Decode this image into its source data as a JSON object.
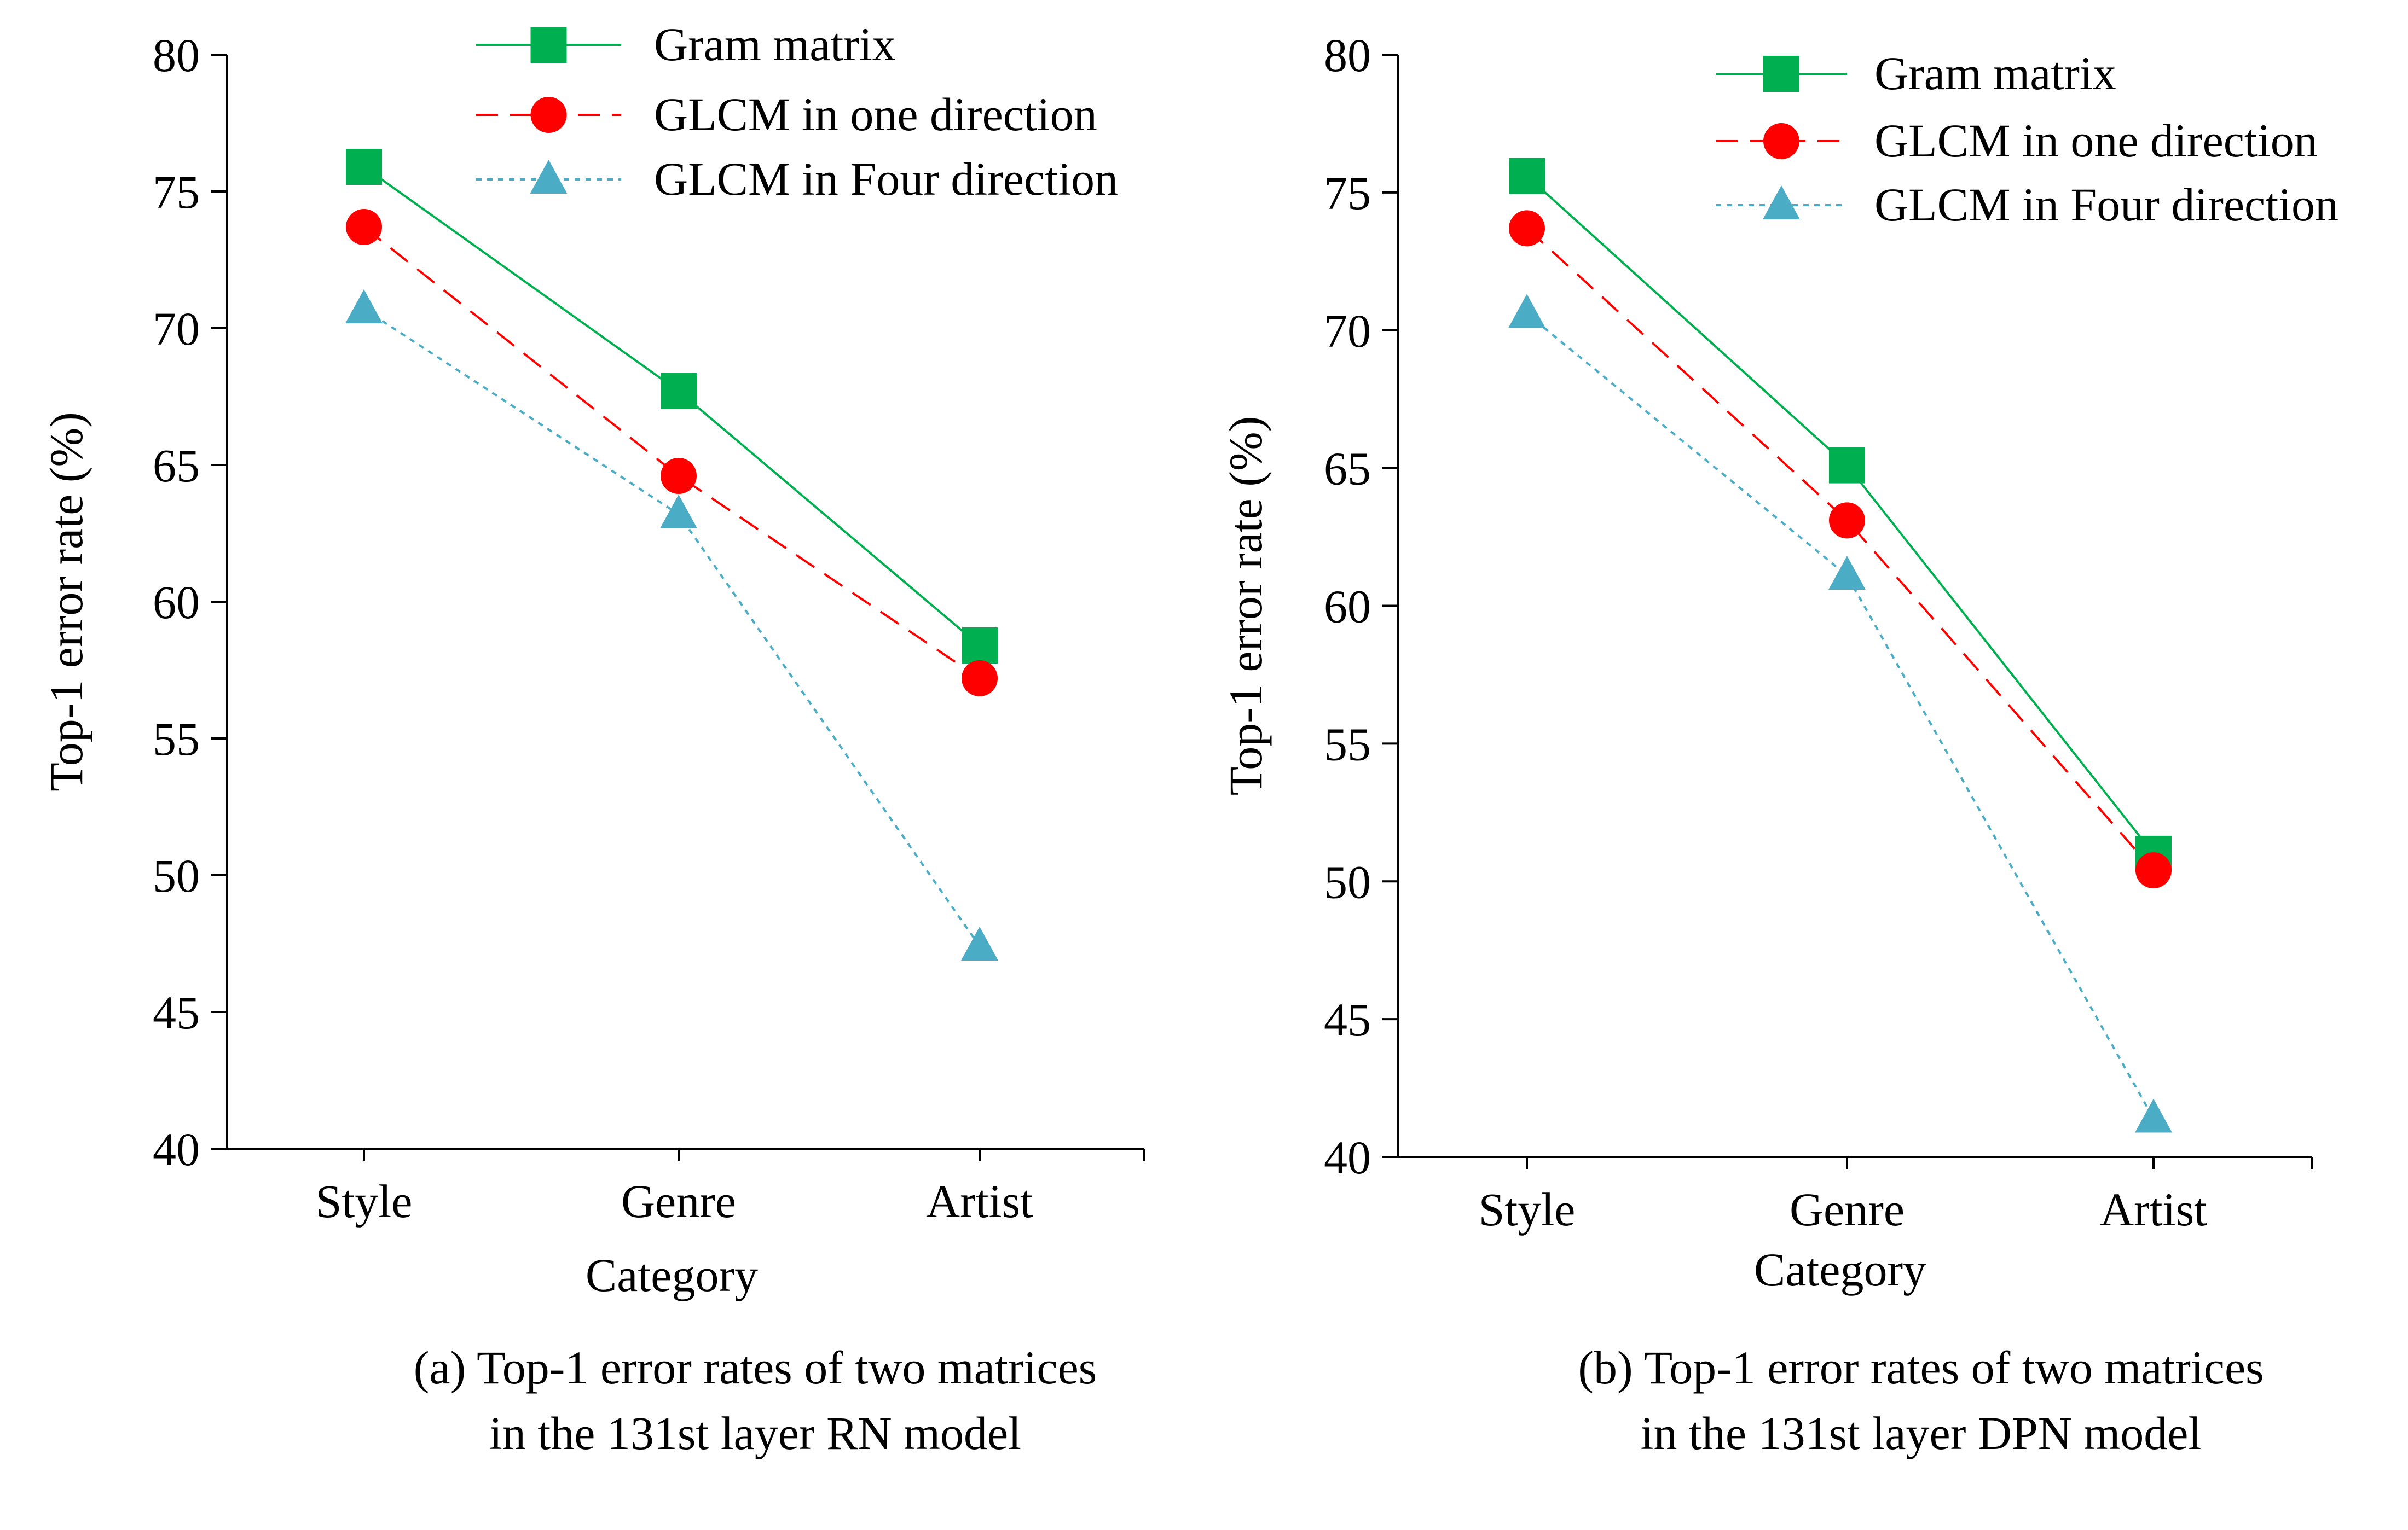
{
  "chart_data": [
    {
      "type": "line",
      "categories": [
        "Style",
        "Genre",
        "Artist"
      ],
      "ylabel": "Top-1 error rate (%)",
      "xlabel": "Category",
      "ylim": [
        40,
        80
      ],
      "yticks": [
        40,
        45,
        50,
        55,
        60,
        65,
        70,
        75,
        80
      ],
      "legend": "top-center",
      "grid": false,
      "series": [
        {
          "name": "Gram matrix",
          "values": [
            75.9,
            67.7,
            58.4
          ],
          "color": "#00b050",
          "marker": "square",
          "line": "solid"
        },
        {
          "name": "GLCM in one direction",
          "values": [
            73.7,
            64.6,
            57.2
          ],
          "color": "#ff0000",
          "marker": "circle",
          "line": "dashed"
        },
        {
          "name": "GLCM in Four direction",
          "values": [
            70.7,
            63.2,
            47.4
          ],
          "color": "#4bacc6",
          "marker": "triangle",
          "line": "dotted"
        }
      ],
      "caption": [
        "(a) Top-1 error rates of two matrices",
        "in the 131st layer RN model"
      ]
    },
    {
      "type": "line",
      "categories": [
        "Style",
        "Genre",
        "Artist"
      ],
      "ylabel": "Top-1 error rate (%)",
      "xlabel": "Category",
      "ylim": [
        40,
        80
      ],
      "yticks": [
        40,
        45,
        50,
        55,
        60,
        65,
        70,
        75,
        80
      ],
      "legend": "top-right",
      "grid": false,
      "series": [
        {
          "name": "Gram matrix",
          "values": [
            75.6,
            65.1,
            51.0
          ],
          "color": "#00b050",
          "marker": "square",
          "line": "solid"
        },
        {
          "name": "GLCM in one direction",
          "values": [
            73.7,
            63.1,
            50.4
          ],
          "color": "#ff0000",
          "marker": "circle",
          "line": "dashed"
        },
        {
          "name": "GLCM in Four direction",
          "values": [
            70.6,
            61.1,
            41.4
          ],
          "color": "#4bacc6",
          "marker": "triangle",
          "line": "dotted"
        }
      ],
      "caption": [
        "(b) Top-1 error rates of two matrices",
        "in the 131st layer DPN model"
      ]
    }
  ]
}
